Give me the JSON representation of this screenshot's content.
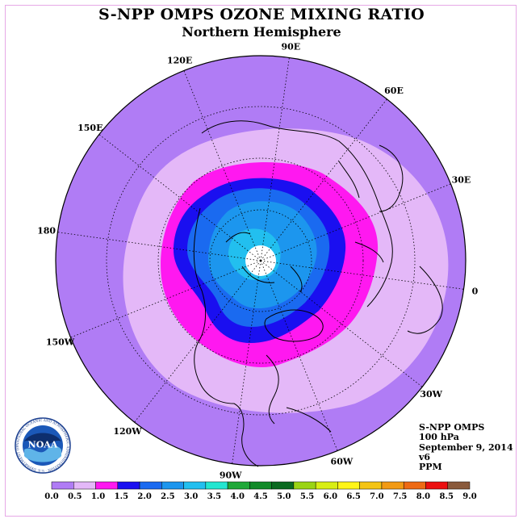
{
  "title": "S-NPP OMPS OZONE MIXING RATIO",
  "subtitle": "Northern Hemisphere",
  "info": {
    "instrument": "S-NPP OMPS",
    "level": "100 hPa",
    "date": "September 9, 2014",
    "version": "v6",
    "units": "PPM"
  },
  "longitude_labels": [
    "0",
    "30E",
    "60E",
    "90E",
    "120E",
    "150E",
    "180",
    "150W",
    "120W",
    "90W",
    "60W",
    "30W"
  ],
  "logo": {
    "name": "NOAA",
    "ring_text": "NATIONAL OCEANIC AND ATMOSPHERIC ADMINISTRATION · U.S. DEPARTMENT OF COMMERCE"
  },
  "colorbar": {
    "ticks": [
      "0.0",
      "0.5",
      "1.0",
      "1.5",
      "2.0",
      "2.5",
      "3.0",
      "3.5",
      "4.0",
      "4.5",
      "5.0",
      "5.5",
      "6.0",
      "6.5",
      "7.0",
      "7.5",
      "8.0",
      "8.5",
      "9.0"
    ],
    "colors": [
      "#b07cf5",
      "#e4b8f8",
      "#ff18f0",
      "#1a0ff0",
      "#1a6af0",
      "#1c96ee",
      "#22bfef",
      "#22e6d0",
      "#1fa838",
      "#118a28",
      "#0a6a20",
      "#9ad414",
      "#d8ee14",
      "#fff518",
      "#f4c414",
      "#f29a14",
      "#ee6a14",
      "#ec1010",
      "#8a5a3c"
    ]
  },
  "map_colors": {
    "outer": "#b07cf5",
    "light": "#e4b8f8",
    "magenta": "#ff18f0",
    "blue": "#1a0ff0",
    "mid_blue": "#1a6af0",
    "light_blue": "#1c96ee",
    "sky": "#22bfef",
    "pole": "#ffffff"
  }
}
